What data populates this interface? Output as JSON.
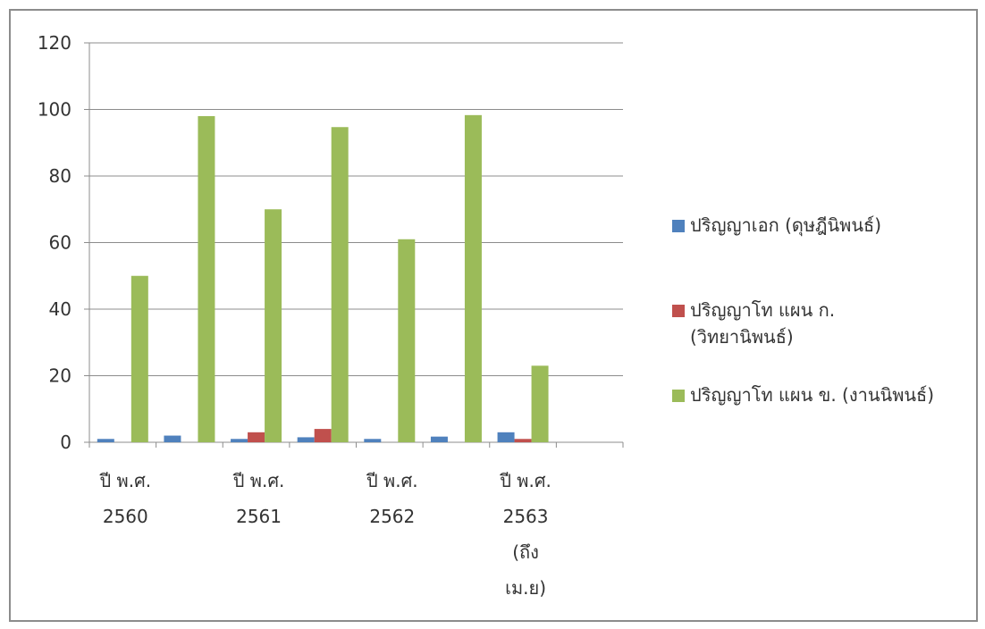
{
  "chart_data": {
    "type": "bar",
    "categories": [
      "",
      "",
      "",
      "",
      "",
      "",
      "",
      ""
    ],
    "x_tick_labels": [
      [
        "ปี พ.ศ.",
        "2560"
      ],
      [
        "ปี พ.ศ.",
        "2561"
      ],
      [
        "ปี พ.ศ.",
        "2562"
      ],
      [
        "ปี พ.ศ.",
        "2563",
        "(ถึง",
        "เม.ย)"
      ]
    ],
    "series": [
      {
        "name": "ปริญญาเอก (ดุษฎีนิพนธ์)",
        "color": "#4f81bd",
        "values": [
          1,
          2,
          1,
          1.5,
          1,
          1.7,
          3,
          null
        ]
      },
      {
        "name": "ปริญญาโท แผน ก. (วิทยานิพนธ์)",
        "color": "#c0504d",
        "values": [
          null,
          null,
          3,
          4,
          null,
          null,
          1,
          null
        ]
      },
      {
        "name": "ปริญญาโท แผน ข. (งานนิพนธ์)",
        "color": "#9bbb59",
        "values": [
          50,
          98,
          70,
          94.7,
          61,
          98.3,
          23,
          null
        ]
      }
    ],
    "ylim": [
      0,
      120
    ],
    "yticks": [
      "0",
      "20",
      "40",
      "60",
      "80",
      "100",
      "120"
    ],
    "grid": true,
    "legend": "right",
    "title": "",
    "xlabel": "",
    "ylabel": ""
  },
  "legend": {
    "items": [
      {
        "label": "ปริญญาเอก (ดุษฎีนิพนธ์)"
      },
      {
        "label": "ปริญญาโท แผน ก.\n(วิทยานิพนธ์)"
      },
      {
        "label": "ปริญญาโท แผน ข. (งานนิพนธ์)"
      }
    ]
  }
}
